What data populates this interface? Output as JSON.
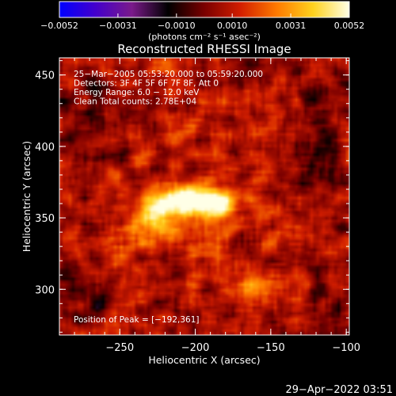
{
  "chart_data": {
    "type": "heatmap",
    "title": "Reconstructed RHESSI Image",
    "xlabel": "Heliocentric X (arcsec)",
    "ylabel": "Heliocentric Y (arcsec)",
    "xlim": [
      -290,
      -98
    ],
    "ylim": [
      268,
      462
    ],
    "x_ticks": [
      -250,
      -200,
      -150,
      -100
    ],
    "y_ticks": [
      300,
      350,
      400,
      450
    ],
    "x_tick_labels": [
      "−250",
      "−200",
      "−150",
      "−100"
    ],
    "y_tick_labels": [
      "300",
      "350",
      "400",
      "450"
    ],
    "colorbar": {
      "range": [
        -0.0052,
        0.0052
      ],
      "tick_values": [
        -0.0052,
        -0.0031,
        -0.001,
        0.001,
        0.0031,
        0.0052
      ],
      "tick_labels": [
        "−0.0052",
        "−0.0031",
        "−0.0010",
        "0.0010",
        "0.0031",
        "0.0052"
      ],
      "unit_label": "(photons cm⁻² s⁻¹ asec⁻²)",
      "colors": [
        "#0000ff",
        "#4400cc",
        "#7a1a8a",
        "#000000",
        "#7a0000",
        "#d21e00",
        "#ff7a00",
        "#ffd21e",
        "#ffffe6"
      ]
    },
    "info_lines": [
      "25−Mar−2005 05:53:20.000 to 05:59:20.000",
      "Detectors: 3F 4F 5F 6F 7F 8F, Att 0",
      "Energy Range: 6.0 − 12.0 keV",
      "Clean     Total counts: 2.78E+04"
    ],
    "peak_label": "Position of Peak = [−192,361]",
    "peak_position": [
      -192,
      361
    ],
    "sources": [
      {
        "x": -205,
        "y": 362,
        "amplitude": 0.0052,
        "sx": 16,
        "sy": 7
      },
      {
        "x": -225,
        "y": 352,
        "amplitude": 0.0033,
        "sx": 9,
        "sy": 9
      },
      {
        "x": -185,
        "y": 358,
        "amplitude": 0.0025,
        "sx": 10,
        "sy": 10
      },
      {
        "x": -160,
        "y": 300,
        "amplitude": 0.0018,
        "sx": 9,
        "sy": 7
      },
      {
        "x": -240,
        "y": 335,
        "amplitude": 0.0015,
        "sx": 12,
        "sy": 10
      },
      {
        "x": -200,
        "y": 330,
        "amplitude": 0.0012,
        "sx": 14,
        "sy": 10
      },
      {
        "x": -265,
        "y": 415,
        "amplitude": -0.0012,
        "sx": 14,
        "sy": 20
      },
      {
        "x": -115,
        "y": 405,
        "amplitude": -0.0014,
        "sx": 10,
        "sy": 25
      },
      {
        "x": -270,
        "y": 295,
        "amplitude": -0.0018,
        "sx": 12,
        "sy": 12
      },
      {
        "x": -115,
        "y": 285,
        "amplitude": -0.0008,
        "sx": 10,
        "sy": 10
      },
      {
        "x": -175,
        "y": 450,
        "amplitude": -0.001,
        "sx": 14,
        "sy": 8
      }
    ]
  },
  "footer": {
    "timestamp": "29−Apr−2022 03:51"
  }
}
